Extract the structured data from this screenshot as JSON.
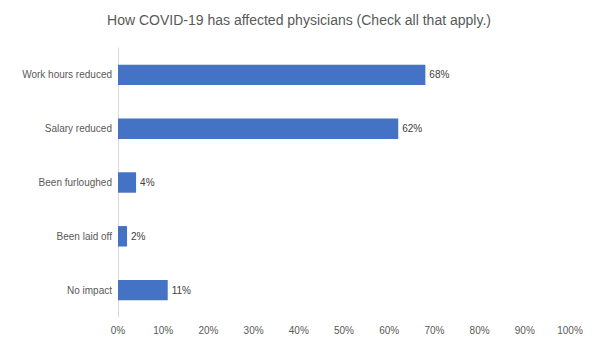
{
  "chart_data": {
    "type": "bar",
    "orientation": "horizontal",
    "title": "How COVID-19 has affected physicians (Check all that apply.)",
    "categories": [
      "Work hours reduced",
      "Salary reduced",
      "Been furloughed",
      "Been laid off",
      "No impact"
    ],
    "values": [
      68,
      62,
      4,
      2,
      11
    ],
    "value_labels": [
      "68%",
      "62%",
      "4%",
      "2%",
      "11%"
    ],
    "data_labels": true,
    "color": "#4472c4",
    "xlim": [
      0,
      100
    ],
    "xticks": [
      {
        "value": 0,
        "label": "0%"
      },
      {
        "value": 10,
        "label": "10%"
      },
      {
        "value": 20,
        "label": "20%"
      },
      {
        "value": 30,
        "label": "30%"
      },
      {
        "value": 40,
        "label": "40%"
      },
      {
        "value": 50,
        "label": "50%"
      },
      {
        "value": 60,
        "label": "60%"
      },
      {
        "value": 70,
        "label": "70%"
      },
      {
        "value": 80,
        "label": "80%"
      },
      {
        "value": 90,
        "label": "90%"
      },
      {
        "value": 100,
        "label": "100%"
      }
    ],
    "grid": false
  }
}
